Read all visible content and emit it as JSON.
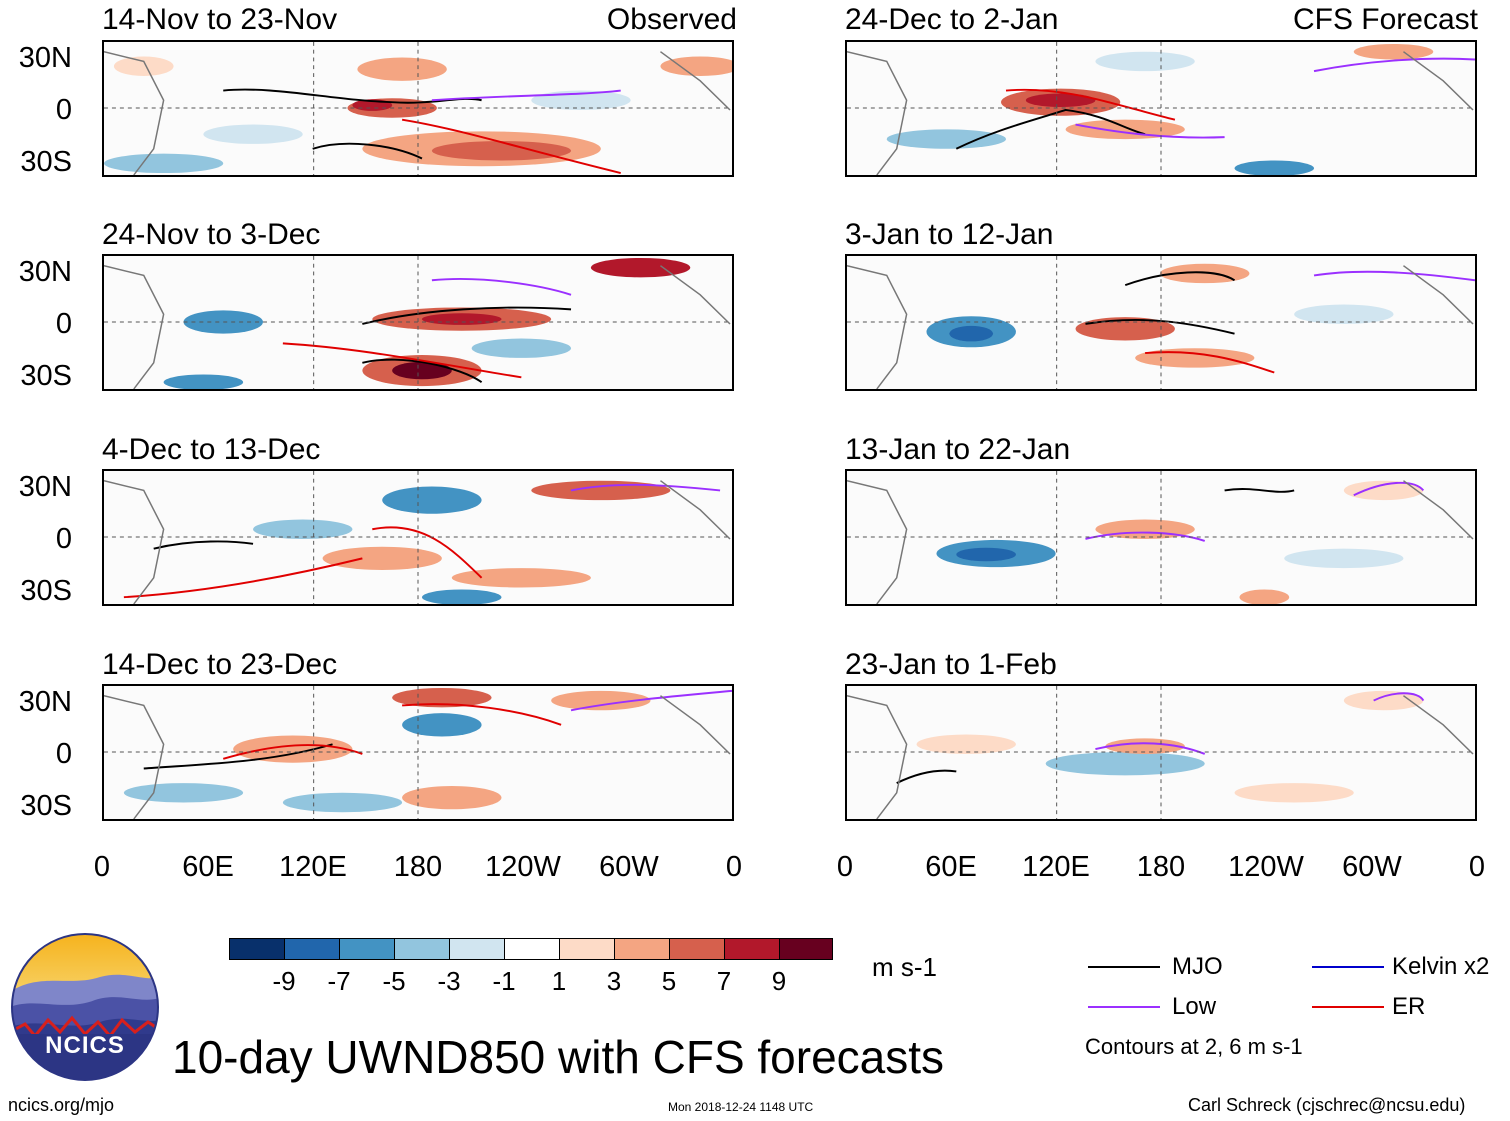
{
  "title": "10-day UWND850 with CFS forecasts",
  "units": "m s-1",
  "colors": {
    "scale": [
      "#08306b",
      "#2166ac",
      "#4393c3",
      "#92c5de",
      "#d1e5f0",
      "#ffffff",
      "#fddbc7",
      "#f4a582",
      "#d6604d",
      "#b2182b",
      "#67001f"
    ],
    "mjo": "#000000",
    "low": "#9b30ff",
    "kelvin": "#0000cc",
    "er": "#e00000"
  },
  "panels_left": {
    "tag": "Observed",
    "titles": [
      "14-Nov to 23-Nov",
      "24-Nov to 3-Dec",
      "4-Dec to 13-Dec",
      "14-Dec to 23-Dec"
    ]
  },
  "panels_right": {
    "tag": "CFS Forecast",
    "titles": [
      "24-Dec to 2-Jan",
      "3-Jan to 12-Jan",
      "13-Jan to 22-Jan",
      "23-Jan to 1-Feb"
    ]
  },
  "lat_labels": [
    "30N",
    "0",
    "30S"
  ],
  "lon_labels": [
    "0",
    "60E",
    "120E",
    "180",
    "120W",
    "60W",
    "0"
  ],
  "colorbar_labels": [
    "-9",
    "-7",
    "-5",
    "-3",
    "-1",
    "1",
    "3",
    "5",
    "7",
    "9"
  ],
  "legend": {
    "mjo": "MJO",
    "kelvin": "Kelvin x2",
    "low": "Low",
    "er": "ER",
    "note": "Contours at 2, 6 m s-1"
  },
  "logo_text": "NCICS",
  "footer": {
    "url": "ncics.org/mjo",
    "timestamp": "Mon 2018-12-24 1148 UTC",
    "author": "Carl Schreck (cjschrec@ncsu.edu)"
  }
}
